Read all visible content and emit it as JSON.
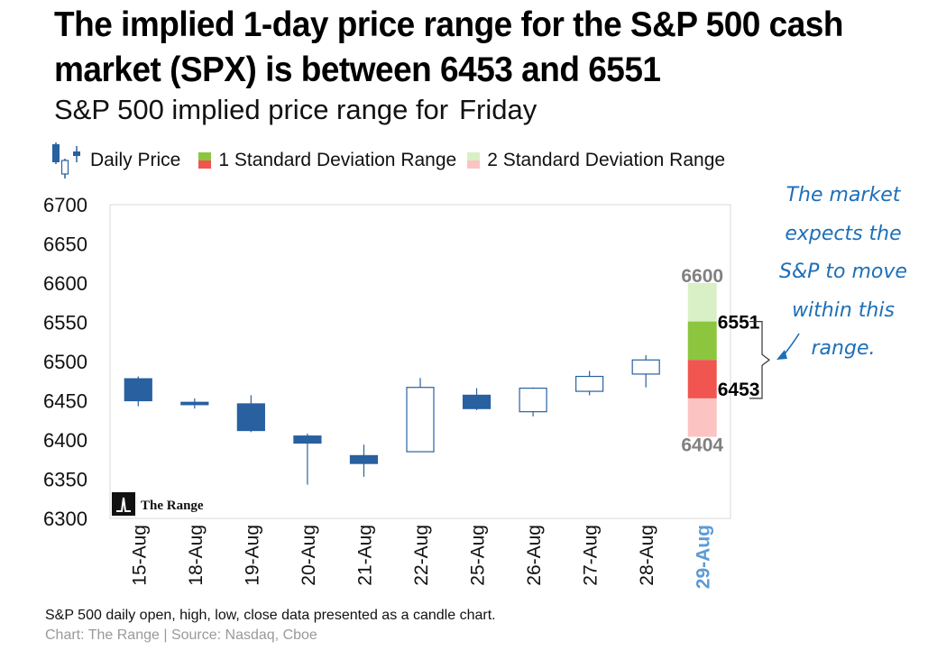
{
  "title": "The implied 1-day price range for the S&P 500 cash market (SPX) is between 6453 and 6551",
  "subtitle": "S&P 500 implied price range for",
  "subtitle_day": "Friday",
  "legend": {
    "daily_price": "Daily Price",
    "sd1": "1 Standard Deviation Range",
    "sd2": "2 Standard Deviation Range"
  },
  "watermark": "The Range",
  "note": "The market expects the S&P to move within this range.",
  "footer": {
    "line1": "S&P 500 daily open, high, low, close data presented as a candle chart.",
    "line2": "Chart: The Range | Source: Nasdaq, Cboe"
  },
  "colors": {
    "candle": "#2860a0",
    "sd1_upper": "#8cc63f",
    "sd1_lower": "#f0554f",
    "sd2_upper": "#d9f0c6",
    "sd2_lower": "#fbc4c2",
    "highlight": "#5b9bd5",
    "note": "#1d6fb8"
  },
  "chart_data": {
    "type": "candlestick",
    "title": "S&P 500 implied price range for Friday",
    "ylim": [
      6300,
      6700
    ],
    "yticks": [
      "6700",
      "6650",
      "6600",
      "6550",
      "6500",
      "6450",
      "6400",
      "6350",
      "6300"
    ],
    "ytick_values": [
      6700,
      6650,
      6600,
      6550,
      6500,
      6450,
      6400,
      6350,
      6300
    ],
    "categories": [
      "15-Aug",
      "18-Aug",
      "19-Aug",
      "20-Aug",
      "21-Aug",
      "22-Aug",
      "25-Aug",
      "26-Aug",
      "27-Aug",
      "28-Aug",
      "29-Aug"
    ],
    "highlighted_category": "29-Aug",
    "candles": [
      {
        "date": "15-Aug",
        "open": 6478,
        "high": 6481,
        "low": 6443,
        "close": 6450
      },
      {
        "date": "18-Aug",
        "open": 6448,
        "high": 6453,
        "low": 6440,
        "close": 6445
      },
      {
        "date": "19-Aug",
        "open": 6446,
        "high": 6457,
        "low": 6410,
        "close": 6412
      },
      {
        "date": "20-Aug",
        "open": 6405,
        "high": 6408,
        "low": 6343,
        "close": 6396
      },
      {
        "date": "21-Aug",
        "open": 6380,
        "high": 6394,
        "low": 6353,
        "close": 6370
      },
      {
        "date": "22-Aug",
        "open": 6385,
        "high": 6479,
        "low": 6385,
        "close": 6467
      },
      {
        "date": "25-Aug",
        "open": 6457,
        "high": 6466,
        "low": 6438,
        "close": 6440
      },
      {
        "date": "26-Aug",
        "open": 6436,
        "high": 6467,
        "low": 6430,
        "close": 6466
      },
      {
        "date": "27-Aug",
        "open": 6462,
        "high": 6488,
        "low": 6457,
        "close": 6481
      },
      {
        "date": "28-Aug",
        "open": 6484,
        "high": 6508,
        "low": 6467,
        "close": 6502
      }
    ],
    "range": {
      "date": "29-Aug",
      "sd2_high": 6600,
      "sd1_high": 6551,
      "mid": 6502,
      "sd1_low": 6453,
      "sd2_low": 6404,
      "labels": {
        "sd2_high": "6600",
        "sd1_high": "6551",
        "sd1_low": "6453",
        "sd2_low": "6404"
      }
    }
  }
}
